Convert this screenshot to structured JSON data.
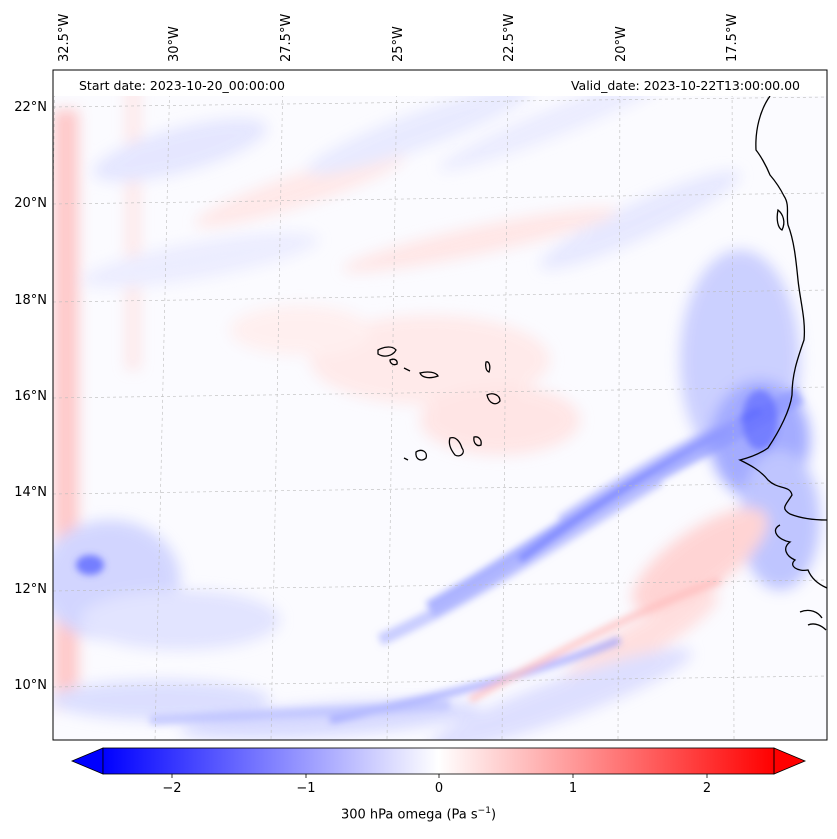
{
  "map": {
    "start_date": "Start date: 2023-10-20_00:00:00",
    "valid_date": "Valid_date: 2023-10-22T13:00:00.00",
    "lon_ticks": [
      "32.5°W",
      "30°W",
      "27.5°W",
      "25°W",
      "22.5°W",
      "20°W",
      "17.5°W"
    ],
    "lat_ticks": [
      "22°N",
      "20°N",
      "18°N",
      "16°N",
      "14°N",
      "12°N",
      "10°N"
    ],
    "features": [
      "Cape Verde islands",
      "West African coastline"
    ]
  },
  "colorbar": {
    "ticks": [
      "−2",
      "−1",
      "0",
      "1",
      "2"
    ],
    "label_main": "300 hPa omega (Pa s",
    "label_exp": "−1",
    "label_close": ")",
    "color_min": "#0000ff",
    "color_mid": "#ffffff",
    "color_max": "#ff0000"
  }
}
